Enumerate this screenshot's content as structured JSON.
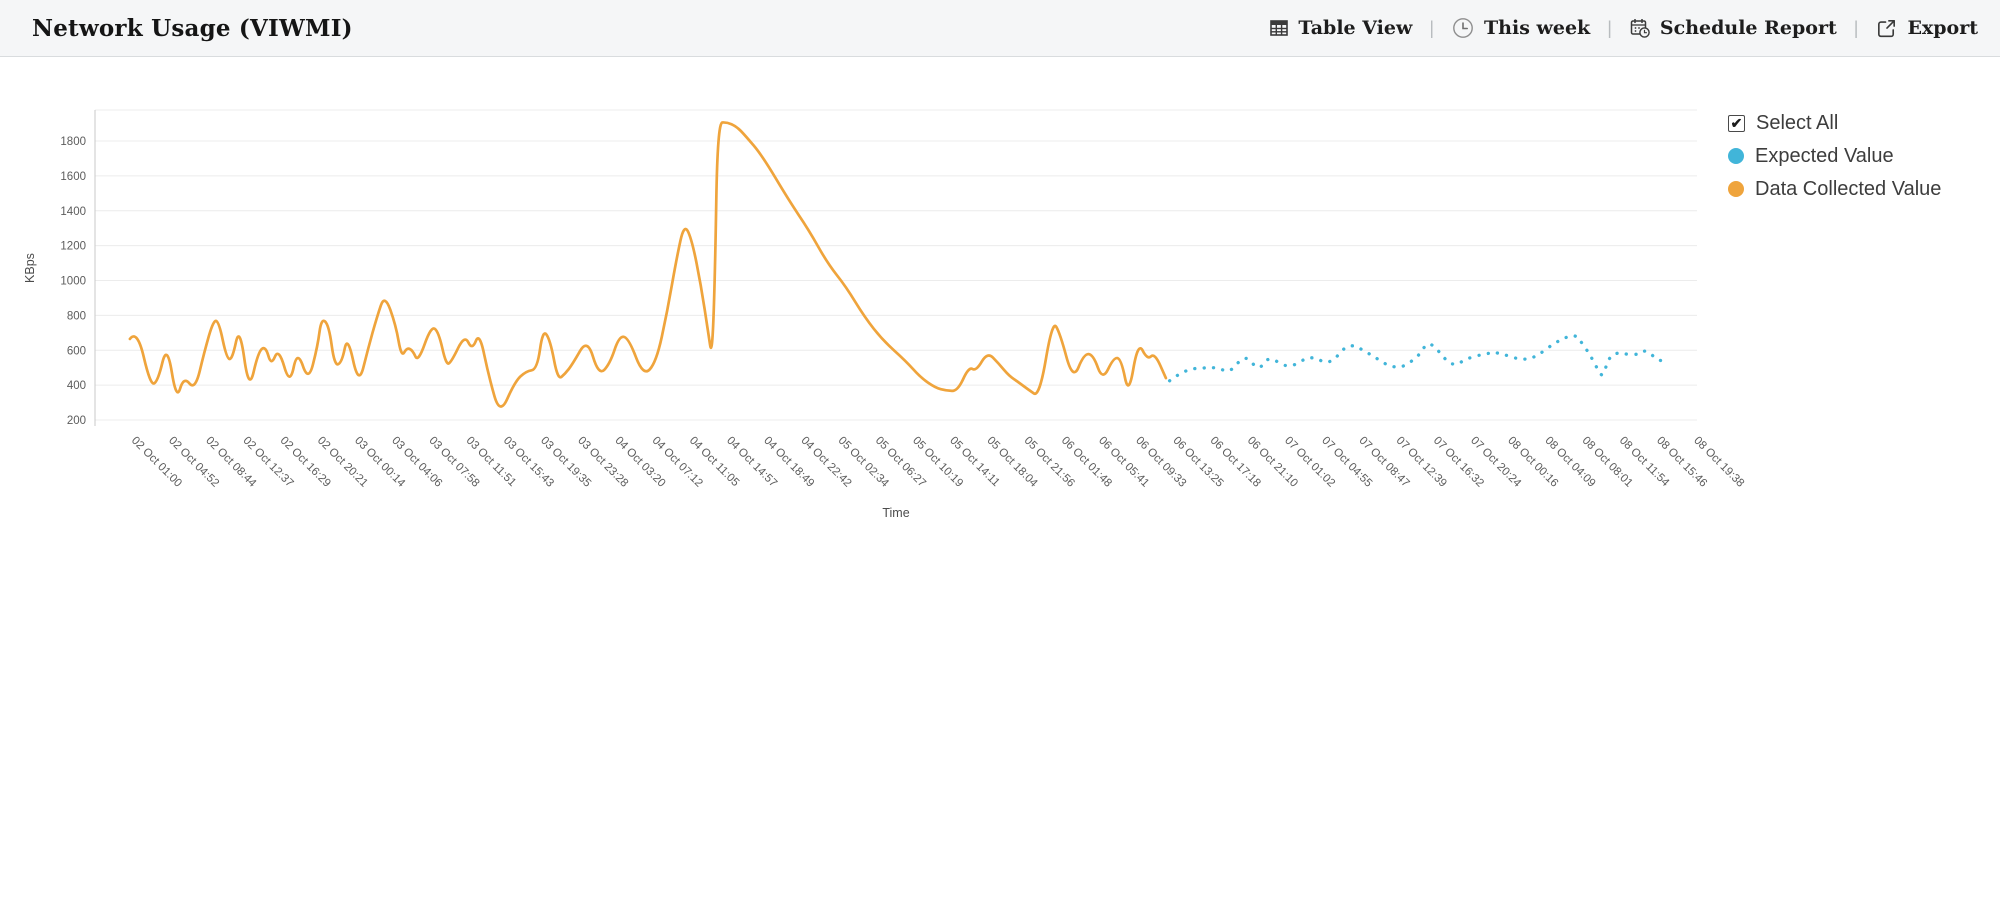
{
  "header": {
    "title": "Network Usage (VIWMI)",
    "separator": "|",
    "actions": {
      "table_view": "Table View",
      "time_range": "This week",
      "schedule_report": "Schedule Report",
      "export": "Export"
    }
  },
  "legend": {
    "select_all": "Select All",
    "select_all_checked": true,
    "check_glyph": "✔",
    "items": [
      {
        "label": "Expected Value",
        "color": "#41b5d9"
      },
      {
        "label": "Data Collected Value",
        "color": "#efa43c"
      }
    ]
  },
  "chart_data": {
    "type": "line",
    "title": "Network Usage (VIWMI)",
    "xlabel": "Time",
    "ylabel": "KBps",
    "ylim": [
      200,
      2000
    ],
    "yticks": [
      200,
      400,
      600,
      800,
      1000,
      1200,
      1400,
      1600,
      1800
    ],
    "grid": true,
    "legend_position": "right",
    "x_tick_labels": [
      "02 Oct 01:00",
      "02 Oct 04:52",
      "02 Oct 08:44",
      "02 Oct 12:37",
      "02 Oct 16:29",
      "02 Oct 20:21",
      "03 Oct 00:14",
      "03 Oct 04:06",
      "03 Oct 07:58",
      "03 Oct 11:51",
      "03 Oct 15:43",
      "03 Oct 19:35",
      "03 Oct 23:28",
      "04 Oct 03:20",
      "04 Oct 07:12",
      "04 Oct 11:05",
      "04 Oct 14:57",
      "04 Oct 18:49",
      "04 Oct 22:42",
      "05 Oct 02:34",
      "05 Oct 06:27",
      "05 Oct 10:19",
      "05 Oct 14:11",
      "05 Oct 18:04",
      "05 Oct 21:56",
      "06 Oct 01:48",
      "06 Oct 05:41",
      "06 Oct 09:33",
      "06 Oct 13:25",
      "06 Oct 17:18",
      "06 Oct 21:10",
      "07 Oct 01:02",
      "07 Oct 04:55",
      "07 Oct 08:47",
      "07 Oct 12:39",
      "07 Oct 16:32",
      "07 Oct 20:24",
      "08 Oct 00:16",
      "08 Oct 04:09",
      "08 Oct 08:01",
      "08 Oct 11:54",
      "08 Oct 15:46",
      "08 Oct 19:38"
    ],
    "series": [
      {
        "name": "Data Collected Value",
        "color": "#efa43c",
        "style": "solid",
        "points": [
          [
            0.05,
            665
          ],
          [
            0.25,
            720
          ],
          [
            0.6,
            400
          ],
          [
            0.8,
            420
          ],
          [
            1.05,
            640
          ],
          [
            1.3,
            310
          ],
          [
            1.5,
            450
          ],
          [
            1.8,
            370
          ],
          [
            2.05,
            590
          ],
          [
            2.3,
            775
          ],
          [
            2.45,
            760
          ],
          [
            2.65,
            555
          ],
          [
            2.8,
            545
          ],
          [
            3.0,
            745
          ],
          [
            3.25,
            360
          ],
          [
            3.5,
            590
          ],
          [
            3.7,
            625
          ],
          [
            3.85,
            510
          ],
          [
            4.05,
            615
          ],
          [
            4.35,
            395
          ],
          [
            4.55,
            605
          ],
          [
            4.85,
            415
          ],
          [
            5.1,
            625
          ],
          [
            5.2,
            785
          ],
          [
            5.4,
            745
          ],
          [
            5.55,
            510
          ],
          [
            5.75,
            530
          ],
          [
            5.9,
            690
          ],
          [
            6.2,
            395
          ],
          [
            6.45,
            605
          ],
          [
            6.7,
            795
          ],
          [
            6.9,
            920
          ],
          [
            7.2,
            745
          ],
          [
            7.35,
            560
          ],
          [
            7.5,
            615
          ],
          [
            7.65,
            600
          ],
          [
            7.8,
            530
          ],
          [
            8.15,
            740
          ],
          [
            8.35,
            705
          ],
          [
            8.55,
            515
          ],
          [
            8.7,
            535
          ],
          [
            9.05,
            690
          ],
          [
            9.25,
            600
          ],
          [
            9.45,
            705
          ],
          [
            9.7,
            450
          ],
          [
            10.0,
            225
          ],
          [
            10.4,
            420
          ],
          [
            10.7,
            480
          ],
          [
            11.0,
            490
          ],
          [
            11.15,
            720
          ],
          [
            11.35,
            660
          ],
          [
            11.55,
            430
          ],
          [
            11.75,
            465
          ],
          [
            11.95,
            520
          ],
          [
            12.35,
            670
          ],
          [
            12.65,
            455
          ],
          [
            12.95,
            520
          ],
          [
            13.2,
            680
          ],
          [
            13.45,
            675
          ],
          [
            13.85,
            450
          ],
          [
            14.2,
            530
          ],
          [
            14.5,
            825
          ],
          [
            14.75,
            1130
          ],
          [
            14.95,
            1325
          ],
          [
            15.15,
            1240
          ],
          [
            15.4,
            975
          ],
          [
            15.6,
            700
          ],
          [
            15.7,
            560
          ],
          [
            15.78,
            1020
          ],
          [
            15.85,
            1905
          ],
          [
            16.1,
            1908
          ],
          [
            16.35,
            1885
          ],
          [
            16.6,
            1830
          ],
          [
            17.05,
            1715
          ],
          [
            17.75,
            1465
          ],
          [
            18.3,
            1290
          ],
          [
            18.8,
            1100
          ],
          [
            19.3,
            965
          ],
          [
            19.8,
            790
          ],
          [
            20.3,
            655
          ],
          [
            20.9,
            540
          ],
          [
            21.3,
            445
          ],
          [
            21.7,
            385
          ],
          [
            22.0,
            368
          ],
          [
            22.3,
            365
          ],
          [
            22.6,
            505
          ],
          [
            22.8,
            480
          ],
          [
            23.1,
            590
          ],
          [
            23.4,
            525
          ],
          [
            23.7,
            450
          ],
          [
            23.95,
            415
          ],
          [
            24.2,
            375
          ],
          [
            24.5,
            330
          ],
          [
            24.85,
            770
          ],
          [
            25.05,
            700
          ],
          [
            25.4,
            425
          ],
          [
            25.7,
            580
          ],
          [
            25.95,
            575
          ],
          [
            26.2,
            425
          ],
          [
            26.5,
            560
          ],
          [
            26.7,
            550
          ],
          [
            26.9,
            335
          ],
          [
            27.15,
            650
          ],
          [
            27.4,
            545
          ],
          [
            27.6,
            585
          ],
          [
            27.9,
            440
          ]
        ]
      },
      {
        "name": "Expected Value",
        "color": "#41b5d9",
        "style": "dotted",
        "points": [
          [
            28.0,
            425
          ],
          [
            28.4,
            490
          ],
          [
            29.0,
            500
          ],
          [
            29.3,
            500
          ],
          [
            29.6,
            470
          ],
          [
            29.9,
            545
          ],
          [
            30.1,
            560
          ],
          [
            30.4,
            480
          ],
          [
            30.65,
            570
          ],
          [
            31.2,
            490
          ],
          [
            31.8,
            575
          ],
          [
            32.3,
            510
          ],
          [
            32.8,
            645
          ],
          [
            33.3,
            590
          ],
          [
            34.1,
            480
          ],
          [
            34.7,
            565
          ],
          [
            34.9,
            640
          ],
          [
            35.1,
            630
          ],
          [
            35.6,
            500
          ],
          [
            36.0,
            555
          ],
          [
            36.5,
            580
          ],
          [
            36.8,
            590
          ],
          [
            37.4,
            545
          ],
          [
            37.8,
            555
          ],
          [
            38.3,
            635
          ],
          [
            38.7,
            680
          ],
          [
            38.95,
            685
          ],
          [
            39.1,
            635
          ],
          [
            39.3,
            575
          ],
          [
            39.55,
            472
          ],
          [
            39.65,
            450
          ],
          [
            39.8,
            555
          ],
          [
            40.0,
            587
          ],
          [
            40.3,
            576
          ],
          [
            40.65,
            576
          ],
          [
            40.8,
            605
          ],
          [
            41.1,
            547
          ],
          [
            41.26,
            538
          ]
        ]
      }
    ]
  }
}
